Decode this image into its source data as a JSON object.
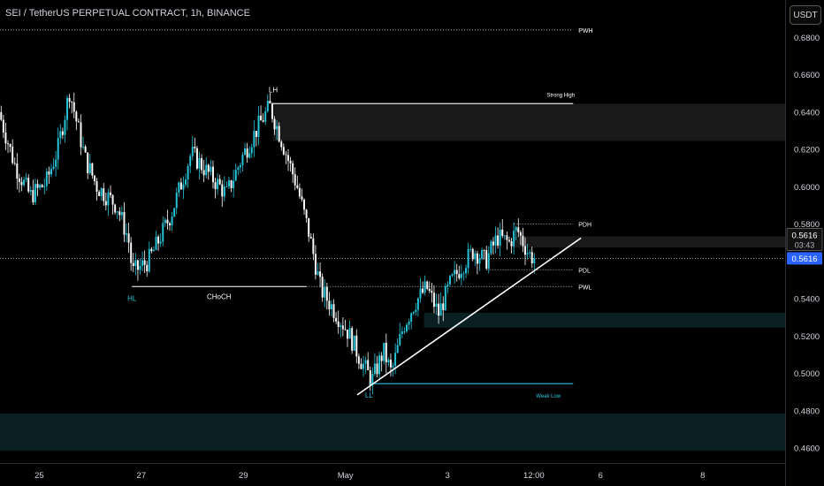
{
  "header": {
    "title": "SEI / TetherUS PERPETUAL CONTRACT, 1h, BINANCE",
    "currency_button": "USDT"
  },
  "colors": {
    "background": "#000000",
    "up": "#26c6da",
    "down": "#ffffff",
    "text": "#d1d4dc",
    "price_badge": "#2962ff",
    "zone": "#1c1c1c",
    "demand_zone": "#0c2a2e"
  },
  "price_badges": {
    "last_close": "0.5616",
    "countdown": "03:43",
    "current": "0.5616"
  },
  "chart_data": {
    "type": "candlestick",
    "symbol": "SEI / TetherUS PERPETUAL CONTRACT",
    "interval": "1h",
    "exchange": "BINANCE",
    "ylim": [
      0.452,
      0.7
    ],
    "yticks": [
      "0.6800",
      "0.6600",
      "0.6400",
      "0.6200",
      "0.6000",
      "0.5800",
      "0.5600",
      "0.5400",
      "0.5200",
      "0.5000",
      "0.4800",
      "0.4600"
    ],
    "xticks": [
      {
        "label": "25",
        "pos": 0.05
      },
      {
        "label": "27",
        "pos": 0.18
      },
      {
        "label": "29",
        "pos": 0.31
      },
      {
        "label": "May",
        "pos": 0.44
      },
      {
        "label": "3",
        "pos": 0.57
      },
      {
        "label": "12:00",
        "pos": 0.68
      },
      {
        "label": "6",
        "pos": 0.765
      },
      {
        "label": "8",
        "pos": 0.895
      }
    ],
    "x_range_end": 0.7,
    "current_price": 0.5616,
    "key_points": [
      {
        "t": 0.0,
        "p": 0.64
      },
      {
        "t": 0.02,
        "p": 0.612
      },
      {
        "t": 0.04,
        "p": 0.595
      },
      {
        "t": 0.06,
        "p": 0.602
      },
      {
        "t": 0.075,
        "p": 0.62
      },
      {
        "t": 0.09,
        "p": 0.651
      },
      {
        "t": 0.11,
        "p": 0.615
      },
      {
        "t": 0.125,
        "p": 0.6
      },
      {
        "t": 0.15,
        "p": 0.59
      },
      {
        "t": 0.165,
        "p": 0.572
      },
      {
        "t": 0.17,
        "p": 0.554
      },
      {
        "t": 0.19,
        "p": 0.56
      },
      {
        "t": 0.2,
        "p": 0.568
      },
      {
        "t": 0.22,
        "p": 0.586
      },
      {
        "t": 0.245,
        "p": 0.618
      },
      {
        "t": 0.265,
        "p": 0.608
      },
      {
        "t": 0.29,
        "p": 0.596
      },
      {
        "t": 0.31,
        "p": 0.616
      },
      {
        "t": 0.33,
        "p": 0.632
      },
      {
        "t": 0.345,
        "p": 0.643
      },
      {
        "t": 0.36,
        "p": 0.625
      },
      {
        "t": 0.38,
        "p": 0.6
      },
      {
        "t": 0.395,
        "p": 0.575
      },
      {
        "t": 0.41,
        "p": 0.545
      },
      {
        "t": 0.43,
        "p": 0.532
      },
      {
        "t": 0.445,
        "p": 0.522
      },
      {
        "t": 0.46,
        "p": 0.508
      },
      {
        "t": 0.475,
        "p": 0.496
      },
      {
        "t": 0.49,
        "p": 0.512
      },
      {
        "t": 0.5,
        "p": 0.5
      },
      {
        "t": 0.515,
        "p": 0.525
      },
      {
        "t": 0.53,
        "p": 0.538
      },
      {
        "t": 0.545,
        "p": 0.546
      },
      {
        "t": 0.56,
        "p": 0.532
      },
      {
        "t": 0.575,
        "p": 0.548
      },
      {
        "t": 0.59,
        "p": 0.558
      },
      {
        "t": 0.605,
        "p": 0.566
      },
      {
        "t": 0.62,
        "p": 0.56
      },
      {
        "t": 0.635,
        "p": 0.573
      },
      {
        "t": 0.65,
        "p": 0.57
      },
      {
        "t": 0.66,
        "p": 0.577
      },
      {
        "t": 0.675,
        "p": 0.564
      },
      {
        "t": 0.682,
        "p": 0.5616
      }
    ],
    "levels": [
      {
        "label": "PWH",
        "price": 0.684,
        "t0": 0.0,
        "t1": 0.73,
        "style": "dotted"
      },
      {
        "label": "PDH",
        "price": 0.58,
        "t0": 0.655,
        "t1": 0.73,
        "style": "dotted"
      },
      {
        "label": "PDL",
        "price": 0.5555,
        "t0": 0.62,
        "t1": 0.73,
        "style": "dotted"
      },
      {
        "label": "PWL",
        "price": 0.5465,
        "t0": 0.39,
        "t1": 0.73,
        "style": "dotted"
      }
    ],
    "structure_lines": [
      {
        "label": "Strong High",
        "price": 0.6445,
        "t0": 0.348,
        "t1": 0.73,
        "style": "solid",
        "label_pos": "above"
      },
      {
        "label": "CHoCH",
        "price": 0.5465,
        "t0": 0.168,
        "t1": 0.39,
        "style": "solid",
        "label_pos": "below"
      },
      {
        "label": "Weak Low",
        "price": 0.4945,
        "t0": 0.47,
        "t1": 0.73,
        "style": "solid",
        "label_pos": "below"
      }
    ],
    "swing_labels": [
      {
        "label": "LH",
        "t": 0.348,
        "price": 0.6445,
        "pos": "above"
      },
      {
        "label": "HL",
        "t": 0.168,
        "price": 0.5465,
        "pos": "below"
      },
      {
        "label": "LL",
        "t": 0.47,
        "price": 0.4945,
        "pos": "below"
      }
    ],
    "zones": [
      {
        "kind": "supply",
        "t0": 0.348,
        "t1": 1.0,
        "p_top": 0.6445,
        "p_bottom": 0.6245
      },
      {
        "kind": "supply",
        "t0": 0.655,
        "t1": 1.0,
        "p_top": 0.5735,
        "p_bottom": 0.5675
      },
      {
        "kind": "demand",
        "t0": 0.54,
        "t1": 1.0,
        "p_top": 0.5325,
        "p_bottom": 0.5245
      },
      {
        "kind": "demand",
        "t0": 0.0,
        "t1": 1.0,
        "p_top": 0.4785,
        "p_bottom": 0.4585
      }
    ],
    "trendline": {
      "t0": 0.455,
      "p0": 0.4885,
      "t1": 0.74,
      "p1": 0.5725
    }
  }
}
